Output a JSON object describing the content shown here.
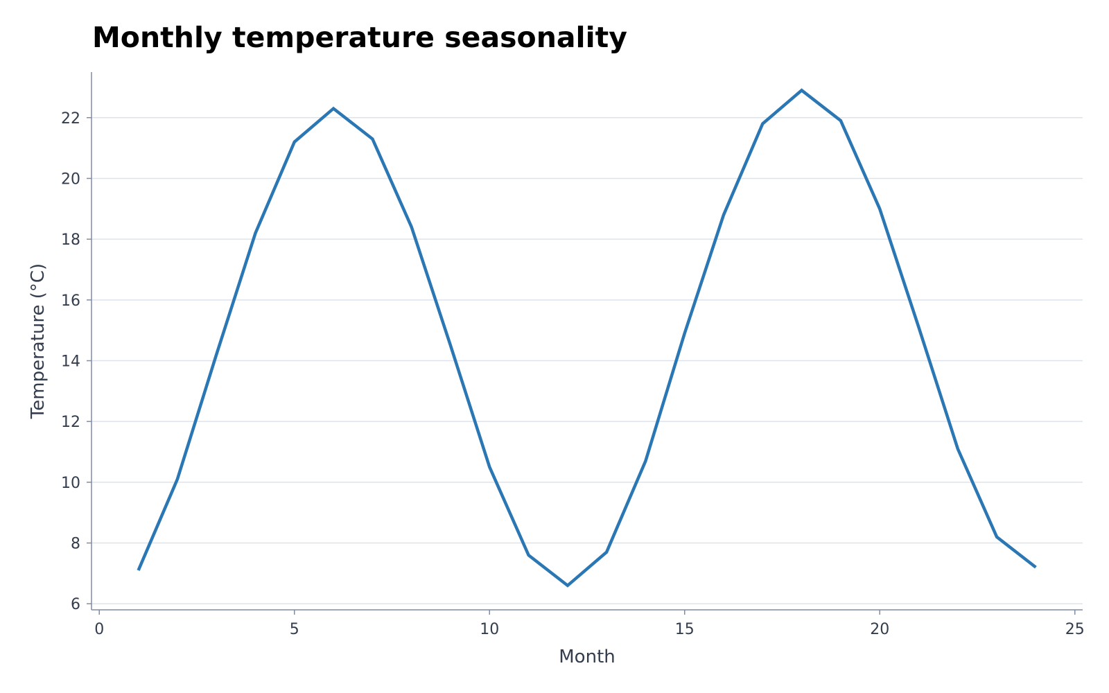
{
  "chart_data": {
    "type": "line",
    "title": "Monthly temperature seasonality",
    "xlabel": "Month",
    "ylabel": "Temperature (°C)",
    "xlim": [
      -0.2,
      25.2
    ],
    "ylim": [
      5.8,
      23.5
    ],
    "xticks": [
      0,
      5,
      10,
      15,
      20,
      25
    ],
    "yticks": [
      6,
      8,
      10,
      12,
      14,
      16,
      18,
      20,
      22
    ],
    "grid": "horizontal",
    "series": [
      {
        "color": "#2a77b4",
        "x": [
          1,
          2,
          3,
          4,
          5,
          6,
          7,
          8,
          9,
          10,
          11,
          12,
          13,
          14,
          15,
          16,
          17,
          18,
          19,
          20,
          21,
          22,
          23,
          24
        ],
        "y": [
          7.1,
          10.1,
          14.2,
          18.2,
          21.2,
          22.3,
          21.3,
          18.4,
          14.5,
          10.5,
          7.6,
          6.6,
          7.7,
          10.7,
          14.9,
          18.8,
          21.8,
          22.9,
          21.9,
          19.0,
          15.1,
          11.1,
          8.2,
          7.2
        ]
      }
    ]
  }
}
